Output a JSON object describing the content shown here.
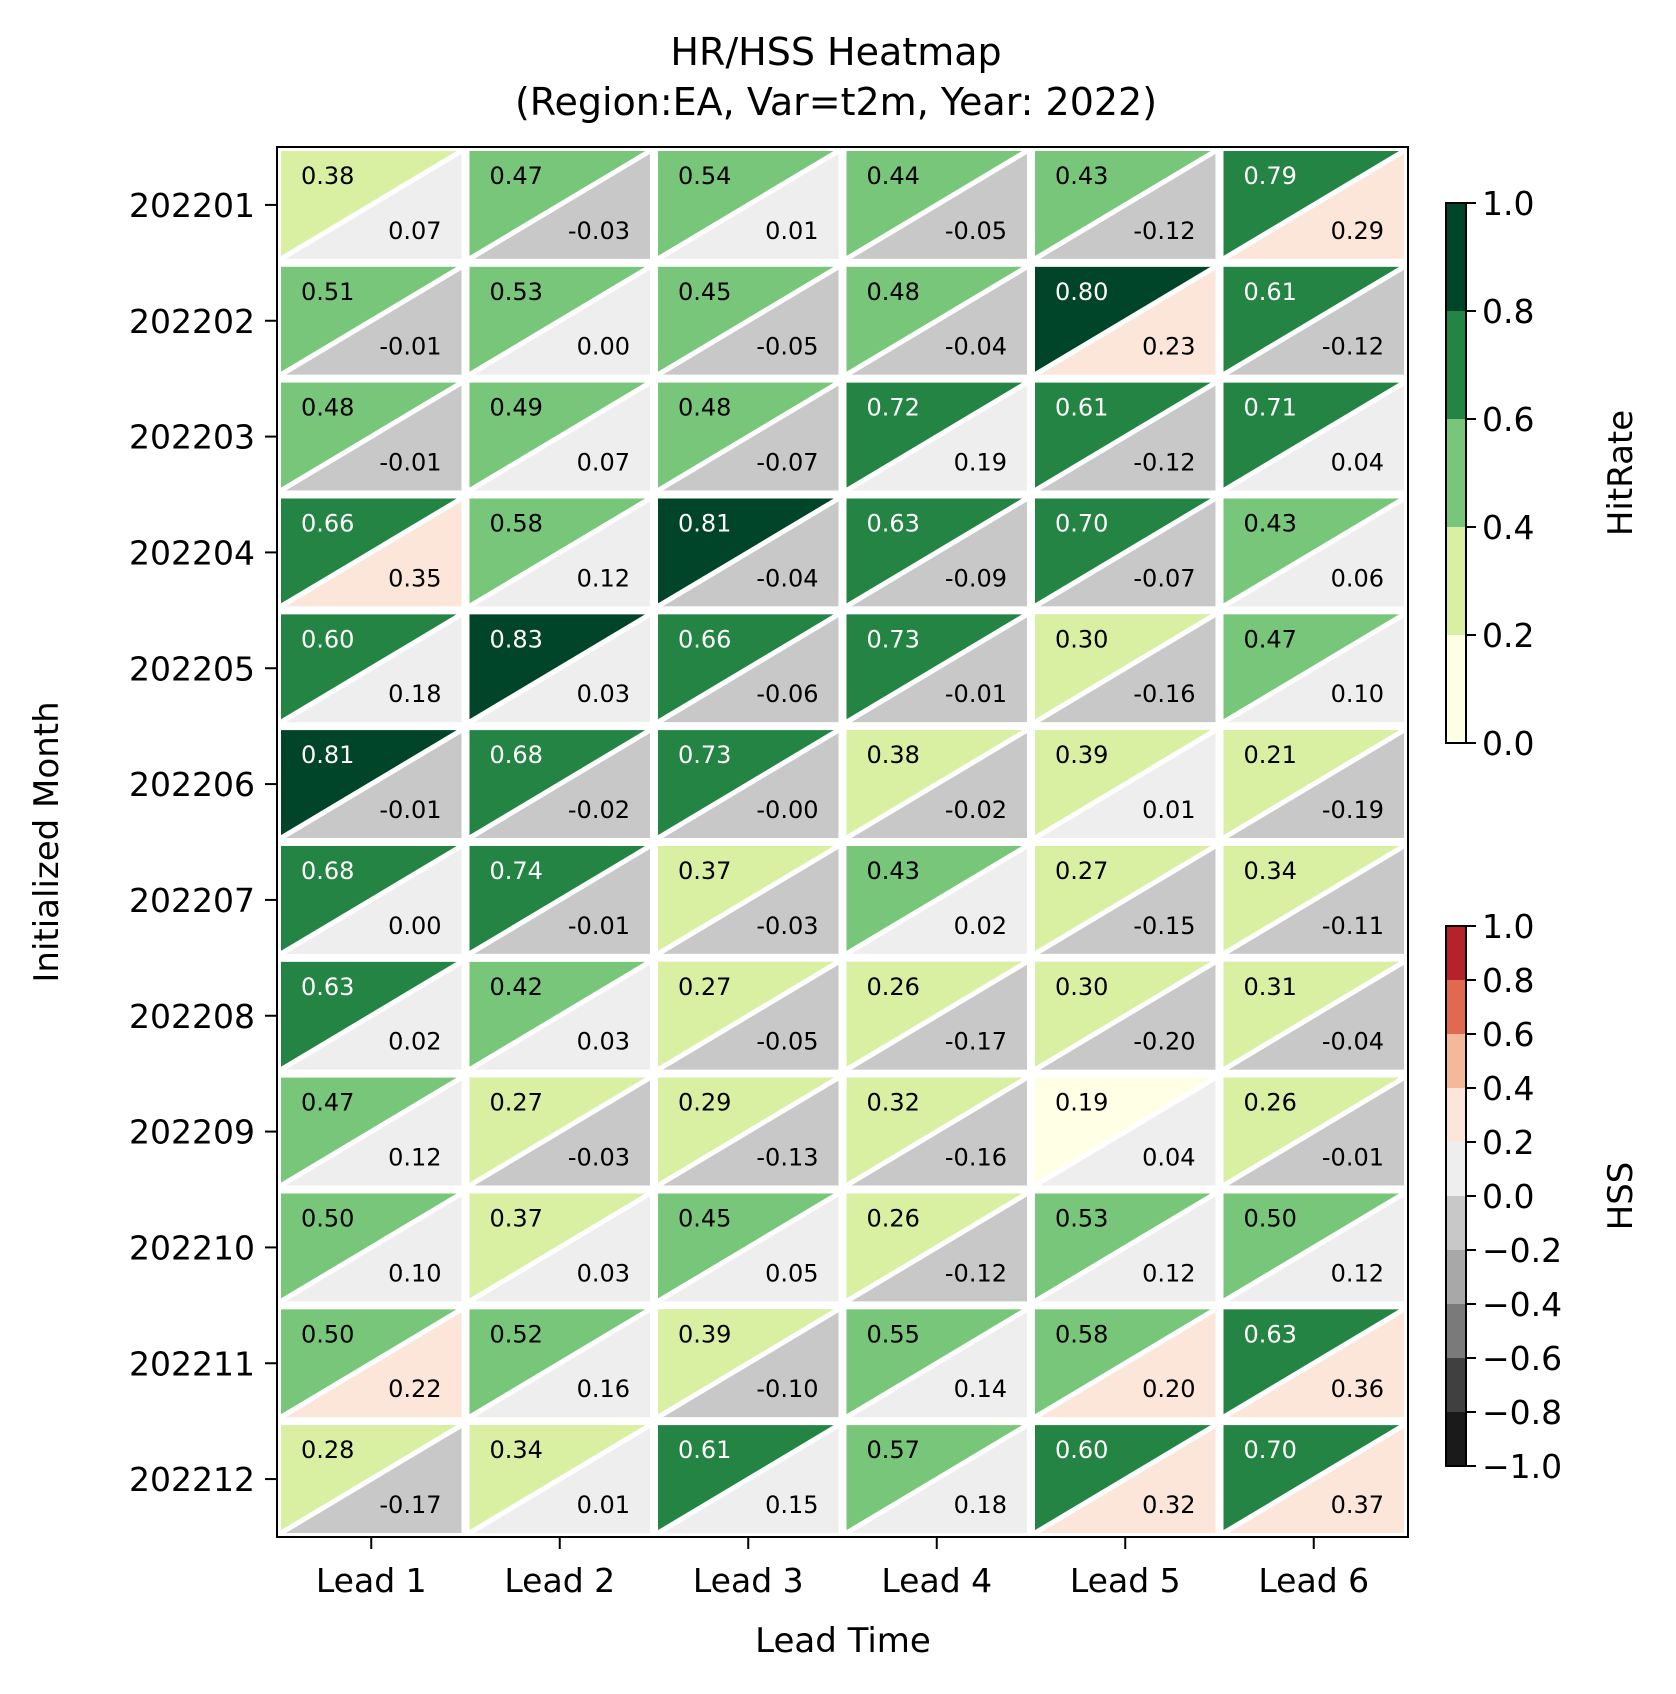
{
  "chart_data": {
    "type": "heatmap",
    "title": "HR/HSS Heatmap",
    "subtitle": "(Region:EA, Var=t2m, Year: 2022)",
    "xlabel": "Lead Time",
    "ylabel": "Initialized Month",
    "x_categories": [
      "Lead 1",
      "Lead 2",
      "Lead 3",
      "Lead 4",
      "Lead 5",
      "Lead 6"
    ],
    "y_categories": [
      "202201",
      "202202",
      "202203",
      "202204",
      "202205",
      "202206",
      "202207",
      "202208",
      "202209",
      "202210",
      "202211",
      "202212"
    ],
    "series": [
      {
        "name": "HitRate",
        "values": [
          [
            0.38,
            0.47,
            0.54,
            0.44,
            0.43,
            0.79
          ],
          [
            0.51,
            0.53,
            0.45,
            0.48,
            0.8,
            0.61
          ],
          [
            0.48,
            0.49,
            0.48,
            0.72,
            0.61,
            0.71
          ],
          [
            0.66,
            0.58,
            0.81,
            0.63,
            0.7,
            0.43
          ],
          [
            0.6,
            0.83,
            0.66,
            0.73,
            0.3,
            0.47
          ],
          [
            0.81,
            0.68,
            0.73,
            0.38,
            0.39,
            0.21
          ],
          [
            0.68,
            0.74,
            0.37,
            0.43,
            0.27,
            0.34
          ],
          [
            0.63,
            0.42,
            0.27,
            0.26,
            0.3,
            0.31
          ],
          [
            0.47,
            0.27,
            0.29,
            0.32,
            0.19,
            0.26
          ],
          [
            0.5,
            0.37,
            0.45,
            0.26,
            0.53,
            0.5
          ],
          [
            0.5,
            0.52,
            0.39,
            0.55,
            0.58,
            0.63
          ],
          [
            0.28,
            0.34,
            0.61,
            0.57,
            0.6,
            0.7
          ]
        ],
        "labels": [
          [
            "0.38",
            "0.47",
            "0.54",
            "0.44",
            "0.43",
            "0.79"
          ],
          [
            "0.51",
            "0.53",
            "0.45",
            "0.48",
            "0.80",
            "0.61"
          ],
          [
            "0.48",
            "0.49",
            "0.48",
            "0.72",
            "0.61",
            "0.71"
          ],
          [
            "0.66",
            "0.58",
            "0.81",
            "0.63",
            "0.70",
            "0.43"
          ],
          [
            "0.60",
            "0.83",
            "0.66",
            "0.73",
            "0.30",
            "0.47"
          ],
          [
            "0.81",
            "0.68",
            "0.73",
            "0.38",
            "0.39",
            "0.21"
          ],
          [
            "0.68",
            "0.74",
            "0.37",
            "0.43",
            "0.27",
            "0.34"
          ],
          [
            "0.63",
            "0.42",
            "0.27",
            "0.26",
            "0.30",
            "0.31"
          ],
          [
            "0.47",
            "0.27",
            "0.29",
            "0.32",
            "0.19",
            "0.26"
          ],
          [
            "0.50",
            "0.37",
            "0.45",
            "0.26",
            "0.53",
            "0.50"
          ],
          [
            "0.50",
            "0.52",
            "0.39",
            "0.55",
            "0.58",
            "0.63"
          ],
          [
            "0.28",
            "0.34",
            "0.61",
            "0.57",
            "0.60",
            "0.70"
          ]
        ]
      },
      {
        "name": "HSS",
        "values": [
          [
            0.07,
            -0.03,
            0.01,
            -0.05,
            -0.12,
            0.29
          ],
          [
            -0.01,
            0.0,
            -0.05,
            -0.04,
            0.23,
            -0.12
          ],
          [
            -0.01,
            0.07,
            -0.07,
            0.19,
            -0.12,
            0.04
          ],
          [
            0.35,
            0.12,
            -0.04,
            -0.09,
            -0.07,
            0.06
          ],
          [
            0.18,
            0.03,
            -0.06,
            -0.01,
            -0.16,
            0.1
          ],
          [
            -0.01,
            -0.02,
            -0.001,
            -0.02,
            0.01,
            -0.19
          ],
          [
            0.0,
            -0.01,
            -0.03,
            0.02,
            -0.15,
            -0.11
          ],
          [
            0.02,
            0.03,
            -0.05,
            -0.17,
            -0.2,
            -0.04
          ],
          [
            0.12,
            -0.03,
            -0.13,
            -0.16,
            0.04,
            -0.01
          ],
          [
            0.1,
            0.03,
            0.05,
            -0.12,
            0.12,
            0.12
          ],
          [
            0.22,
            0.16,
            -0.1,
            0.14,
            0.2,
            0.36
          ],
          [
            -0.17,
            0.01,
            0.15,
            0.18,
            0.32,
            0.37
          ]
        ],
        "labels": [
          [
            "0.07",
            "-0.03",
            "0.01",
            "-0.05",
            "-0.12",
            "0.29"
          ],
          [
            "-0.01",
            "0.00",
            "-0.05",
            "-0.04",
            "0.23",
            "-0.12"
          ],
          [
            "-0.01",
            "0.07",
            "-0.07",
            "0.19",
            "-0.12",
            "0.04"
          ],
          [
            "0.35",
            "0.12",
            "-0.04",
            "-0.09",
            "-0.07",
            "0.06"
          ],
          [
            "0.18",
            "0.03",
            "-0.06",
            "-0.01",
            "-0.16",
            "0.10"
          ],
          [
            "-0.01",
            "-0.02",
            "-0.00",
            "-0.02",
            "0.01",
            "-0.19"
          ],
          [
            "0.00",
            "-0.01",
            "-0.03",
            "0.02",
            "-0.15",
            "-0.11"
          ],
          [
            "0.02",
            "0.03",
            "-0.05",
            "-0.17",
            "-0.20",
            "-0.04"
          ],
          [
            "0.12",
            "-0.03",
            "-0.13",
            "-0.16",
            "0.04",
            "-0.01"
          ],
          [
            "0.10",
            "0.03",
            "0.05",
            "-0.12",
            "0.12",
            "0.12"
          ],
          [
            "0.22",
            "0.16",
            "-0.10",
            "0.14",
            "0.20",
            "0.36"
          ],
          [
            "-0.17",
            "0.01",
            "0.15",
            "0.18",
            "0.32",
            "0.37"
          ]
        ]
      }
    ],
    "colorbars": [
      {
        "label": "HitRate",
        "range": [
          0.0,
          1.0
        ],
        "ticks": [
          "0.0",
          "0.2",
          "0.4",
          "0.6",
          "0.8",
          "1.0"
        ],
        "bounds": [
          0.0,
          0.2,
          0.4,
          0.6,
          0.8,
          1.0
        ],
        "colors": [
          "#ffffe5",
          "#d9f0a3",
          "#78c679",
          "#238443",
          "#004529"
        ]
      },
      {
        "label": "HSS",
        "range": [
          -1.0,
          1.0
        ],
        "ticks": [
          "−1.0",
          "−0.8",
          "−0.6",
          "−0.4",
          "−0.2",
          "0.0",
          "0.2",
          "0.4",
          "0.6",
          "0.8",
          "1.0"
        ],
        "bounds": [
          -1.0,
          -0.8,
          -0.6,
          -0.4,
          -0.2,
          0.0,
          0.2,
          0.4,
          0.6,
          0.8,
          1.0
        ],
        "colors": [
          "#1a1a1a",
          "#404040",
          "#7a7a7a",
          "#a8a8a8",
          "#c8c8c8",
          "#eeeeee",
          "#fce6da",
          "#f5b89a",
          "#e0694f",
          "#b5222c",
          "#67001f"
        ]
      }
    ]
  }
}
